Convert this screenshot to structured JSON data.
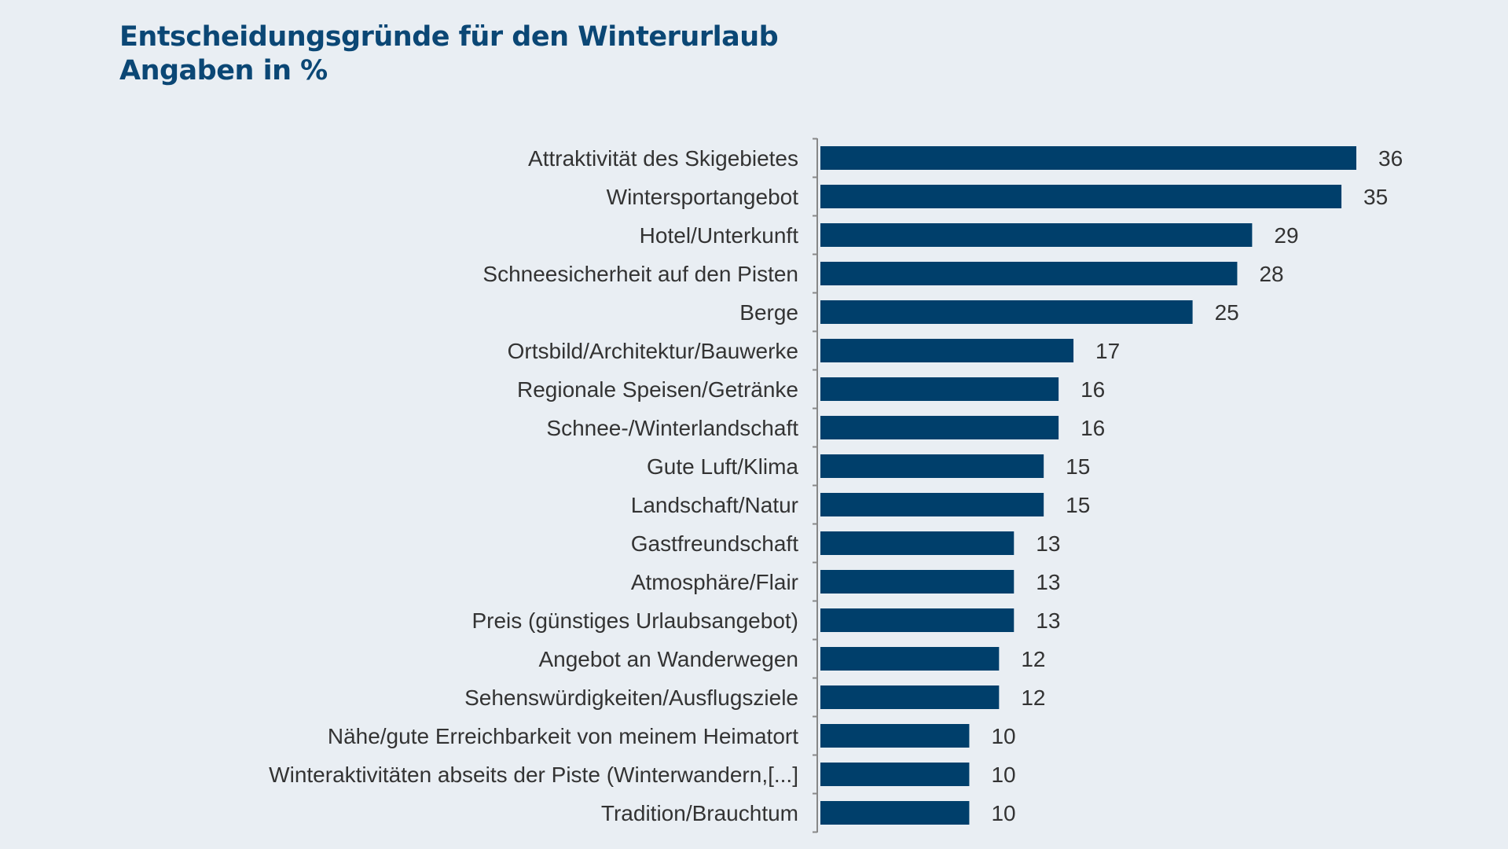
{
  "title": "Entscheidungsgründe für den Winterurlaub",
  "subtitle": "Angaben in %",
  "colors": {
    "bar": "#003f6b",
    "background": "#e9eef3",
    "title": "#0b4775"
  },
  "chart_data": {
    "type": "bar",
    "orientation": "horizontal",
    "title": "Entscheidungsgründe für den Winterurlaub",
    "subtitle": "Angaben in %",
    "categories": [
      "Attraktivität des Skigebietes",
      "Wintersportangebot",
      "Hotel/Unterkunft",
      "Schneesicherheit auf den Pisten",
      "Berge",
      "Ortsbild/Architektur/Bauwerke",
      "Regionale Speisen/Getränke",
      "Schnee-/Winterlandschaft",
      "Gute Luft/Klima",
      "Landschaft/Natur",
      "Gastfreundschaft",
      "Atmosphäre/Flair",
      "Preis (günstiges Urlaubsangebot)",
      "Angebot an Wanderwegen",
      "Sehenswürdigkeiten/Ausflugsziele",
      "Nähe/gute Erreichbarkeit von meinem Heimatort",
      "Winteraktivitäten abseits der Piste (Winterwandern,[...]",
      "Tradition/Brauchtum"
    ],
    "values": [
      36,
      35,
      29,
      28,
      25,
      17,
      16,
      16,
      15,
      15,
      13,
      13,
      13,
      12,
      12,
      10,
      10,
      10
    ],
    "xlim": [
      0,
      36
    ],
    "grid": false,
    "legend": "none",
    "data_labels": true
  }
}
